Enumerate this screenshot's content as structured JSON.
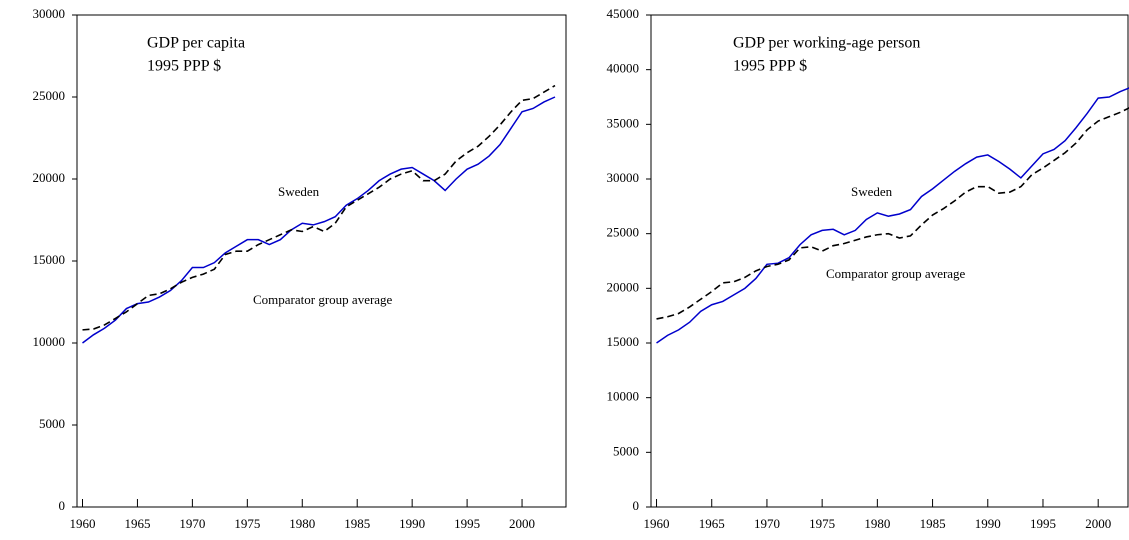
{
  "chart_data": [
    {
      "type": "line",
      "title": "GDP per capita",
      "subtitle": "1995 PPP $",
      "x": [
        1960,
        1961,
        1962,
        1963,
        1964,
        1965,
        1966,
        1967,
        1968,
        1969,
        1970,
        1971,
        1972,
        1973,
        1974,
        1975,
        1976,
        1977,
        1978,
        1979,
        1980,
        1981,
        1982,
        1983,
        1984,
        1985,
        1986,
        1987,
        1988,
        1989,
        1990,
        1991,
        1992,
        1993,
        1994,
        1995,
        1996,
        1997,
        1998,
        1999,
        2000,
        2001,
        2002,
        2003
      ],
      "series": [
        {
          "name": "Sweden",
          "color": "#0000cc",
          "dash": false,
          "values": [
            10000,
            10500,
            10900,
            11400,
            12100,
            12400,
            12500,
            12800,
            13200,
            13800,
            14600,
            14600,
            14900,
            15500,
            15900,
            16300,
            16300,
            16000,
            16300,
            16900,
            17300,
            17200,
            17400,
            17700,
            18400,
            18800,
            19300,
            19900,
            20300,
            20600,
            20700,
            20300,
            19900,
            19300,
            20000,
            20600,
            20900,
            21400,
            22100,
            23100,
            24100,
            24300,
            24700,
            25000
          ]
        },
        {
          "name": "Comparator group average",
          "color": "#000000",
          "dash": true,
          "values": [
            10800,
            10850,
            11100,
            11500,
            11900,
            12400,
            12900,
            13000,
            13300,
            13700,
            14000,
            14200,
            14500,
            15400,
            15600,
            15600,
            16000,
            16300,
            16600,
            16900,
            16800,
            17100,
            16800,
            17300,
            18300,
            18700,
            19100,
            19500,
            20000,
            20300,
            20500,
            19900,
            19900,
            20300,
            21100,
            21600,
            22000,
            22600,
            23300,
            24100,
            24800,
            24900,
            25300,
            25700
          ]
        }
      ],
      "xlim": [
        1959.5,
        2004
      ],
      "xticks": [
        1960,
        1965,
        1970,
        1975,
        1980,
        1985,
        1990,
        1995,
        2000
      ],
      "ylim": [
        0,
        30000
      ],
      "yticks": [
        0,
        5000,
        10000,
        15000,
        20000,
        25000,
        30000
      ]
    },
    {
      "type": "line",
      "title": "GDP per working-age person",
      "subtitle": "1995 PPP $",
      "x": [
        1960,
        1961,
        1962,
        1963,
        1964,
        1965,
        1966,
        1967,
        1968,
        1969,
        1970,
        1971,
        1972,
        1973,
        1974,
        1975,
        1976,
        1977,
        1978,
        1979,
        1980,
        1981,
        1982,
        1983,
        1984,
        1985,
        1986,
        1987,
        1988,
        1989,
        1990,
        1991,
        1992,
        1993,
        1994,
        1995,
        1996,
        1997,
        1998,
        1999,
        2000,
        2001,
        2002,
        2003
      ],
      "series": [
        {
          "name": "Sweden",
          "color": "#0000cc",
          "dash": false,
          "values": [
            15000,
            15700,
            16200,
            16900,
            17900,
            18500,
            18800,
            19400,
            20000,
            20900,
            22200,
            22300,
            22800,
            24000,
            24900,
            25300,
            25400,
            24900,
            25300,
            26300,
            26900,
            26600,
            26800,
            27200,
            28400,
            29100,
            29900,
            30700,
            31400,
            32000,
            32200,
            31600,
            30900,
            30100,
            31200,
            32300,
            32700,
            33500,
            34700,
            36000,
            37400,
            37500,
            38000,
            38400
          ]
        },
        {
          "name": "Comparator group average",
          "color": "#000000",
          "dash": true,
          "values": [
            17200,
            17400,
            17700,
            18300,
            19000,
            19700,
            20500,
            20600,
            21000,
            21600,
            22000,
            22200,
            22600,
            23700,
            23800,
            23400,
            23900,
            24100,
            24400,
            24700,
            24900,
            25000,
            24600,
            24800,
            25800,
            26700,
            27300,
            28000,
            28800,
            29300,
            29300,
            28700,
            28800,
            29300,
            30400,
            31000,
            31700,
            32400,
            33300,
            34500,
            35300,
            35700,
            36100,
            36600
          ]
        }
      ],
      "xlim": [
        1959.5,
        2002.7
      ],
      "xticks": [
        1960,
        1965,
        1970,
        1975,
        1980,
        1985,
        1990,
        1995,
        2000
      ],
      "ylim": [
        0,
        45000
      ],
      "yticks": [
        0,
        5000,
        10000,
        15000,
        20000,
        25000,
        30000,
        35000,
        40000,
        45000
      ]
    }
  ]
}
